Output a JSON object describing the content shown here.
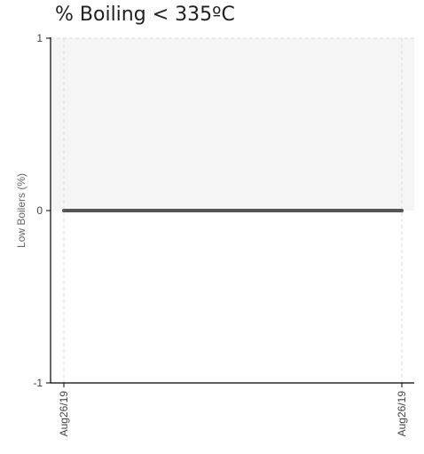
{
  "chart_data": {
    "type": "line",
    "title": "% Boiling < 335ºC",
    "xlabel": "",
    "ylabel": "Low Boilers (%)",
    "x": [
      "Aug26/19",
      "Aug26/19"
    ],
    "series": [
      {
        "values": [
          0,
          0
        ]
      }
    ],
    "ylim": [
      -1,
      1
    ],
    "yticks": [
      "-1",
      "0",
      "1"
    ],
    "xticks": [
      "Aug26/19",
      "Aug26/19"
    ],
    "grid": true,
    "shaded_band": [
      0,
      1
    ],
    "colors": {
      "line": "#555555",
      "band": "#f5f5f5",
      "grid": "#dddddd",
      "axis": "#000000"
    }
  }
}
